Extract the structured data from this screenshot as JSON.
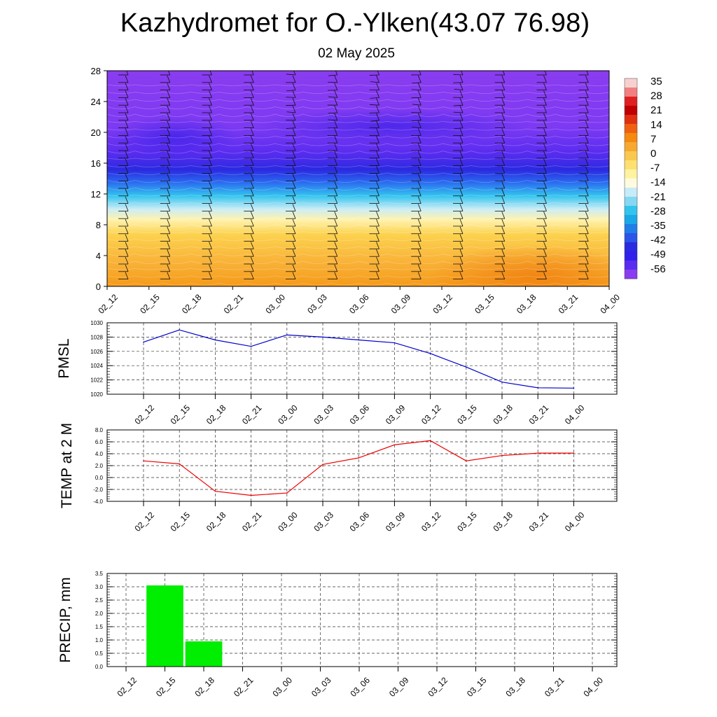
{
  "header": {
    "title": "Kazhydromet for O.-Ylken(43.07 76.98)",
    "subtitle": "02 May 2025"
  },
  "chart_data": [
    {
      "type": "heatmap",
      "name": "temperature-height-section",
      "x_ticks": [
        "02_12",
        "02_15",
        "02_18",
        "02_21",
        "03_00",
        "03_03",
        "03_06",
        "03_09",
        "03_12",
        "03_15",
        "03_18",
        "03_21",
        "04_00"
      ],
      "y_ticks": [
        "0",
        "4",
        "8",
        "12",
        "16",
        "20",
        "24",
        "28"
      ],
      "ylim": [
        0,
        28
      ],
      "colorbar_labels": [
        "35",
        "28",
        "21",
        "14",
        "7",
        "0",
        "-7",
        "-14",
        "-21",
        "-28",
        "-35",
        "-42",
        "-49",
        "-56"
      ],
      "colorbar_range": [
        -63,
        42
      ],
      "colors": {
        "warm": "#f59a1a",
        "yellow": "#fff2a0",
        "cyan": "#33c4ee",
        "blue": "#2a2ae0",
        "violet": "#8a3cf0",
        "red": "#d01010"
      }
    },
    {
      "type": "line",
      "name": "pmsl",
      "ylabel": "PMSL",
      "categories": [
        "02_12",
        "02_15",
        "02_18",
        "02_21",
        "03_00",
        "03_03",
        "03_06",
        "03_09",
        "03_12",
        "03_15",
        "03_18",
        "03_21",
        "04_00"
      ],
      "y_ticks": [
        "1020",
        "1022",
        "1024",
        "1026",
        "1028",
        "1030"
      ],
      "ylim": [
        1020,
        1030
      ],
      "values": [
        1027.3,
        1029.0,
        1027.6,
        1026.7,
        1028.3,
        1028.0,
        1027.6,
        1027.2,
        1025.7,
        1023.8,
        1021.7,
        1020.9,
        1020.85
      ],
      "color": "#0000cc"
    },
    {
      "type": "line",
      "name": "temp-2m",
      "ylabel": "TEMP at 2 M",
      "categories": [
        "02_12",
        "02_15",
        "02_18",
        "02_21",
        "03_00",
        "03_03",
        "03_06",
        "03_09",
        "03_12",
        "03_15",
        "03_18",
        "03_21",
        "04_00"
      ],
      "y_ticks": [
        "-4.0",
        "-2.0",
        "0.0",
        "2.0",
        "4.0",
        "6.0",
        "8.0"
      ],
      "ylim": [
        -4,
        8
      ],
      "values": [
        2.8,
        2.3,
        -2.3,
        -3.0,
        -2.6,
        2.2,
        3.3,
        5.5,
        6.2,
        2.8,
        3.7,
        4.1,
        4.1
      ],
      "color": "#ee0000"
    },
    {
      "type": "bar",
      "name": "precip",
      "ylabel": "PRECIP, mm",
      "categories": [
        "02_12",
        "02_15",
        "02_18",
        "02_21",
        "03_00",
        "03_03",
        "03_06",
        "03_09",
        "03_12",
        "03_15",
        "03_18",
        "03_21",
        "04_00"
      ],
      "y_ticks": [
        "0.0",
        "0.5",
        "1.0",
        "1.5",
        "2.0",
        "2.5",
        "3.0",
        "3.5"
      ],
      "ylim": [
        0,
        3.5
      ],
      "values": [
        0,
        3.05,
        0.95,
        0,
        0,
        0,
        0,
        0,
        0,
        0,
        0,
        0,
        0
      ],
      "color": "#00ee00"
    }
  ]
}
